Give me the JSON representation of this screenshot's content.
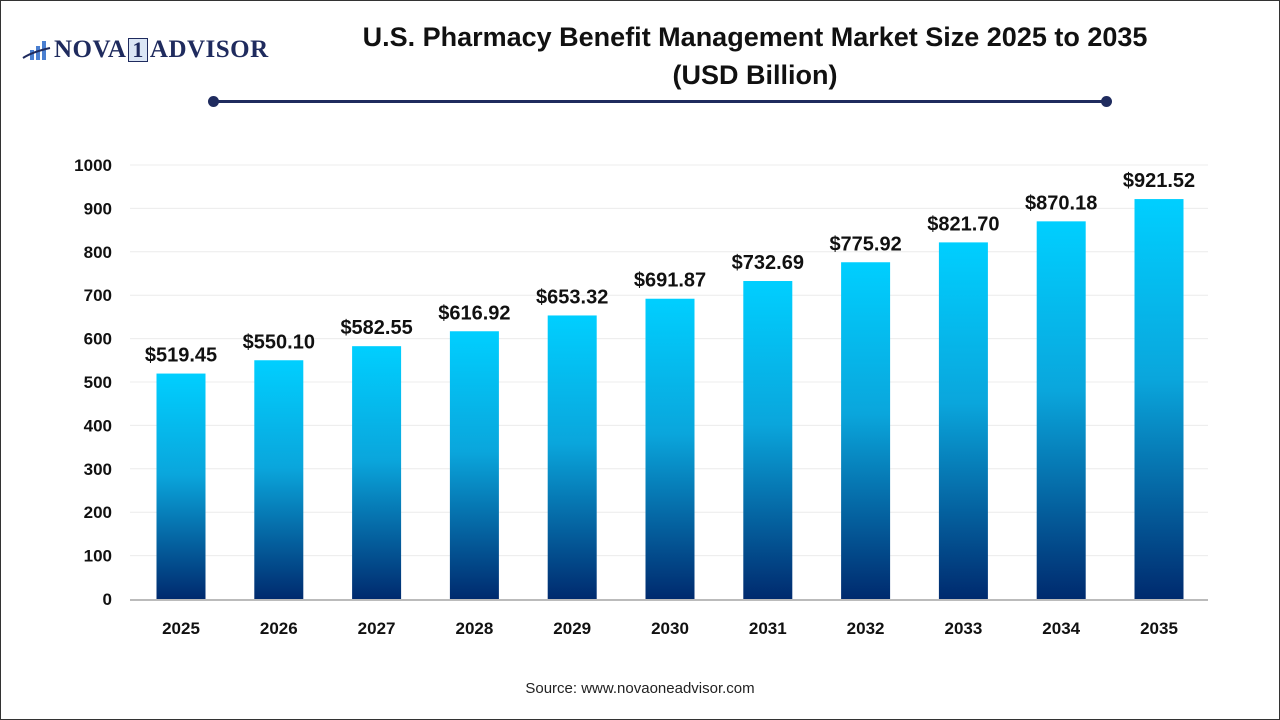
{
  "logo": {
    "text_left": "NOVA",
    "text_mid": "1",
    "text_right": "ADVISOR"
  },
  "title_line1": "U.S. Pharmacy Benefit Management Market Size 2025 to 2035",
  "title_line2": "(USD Billion)",
  "source": "Source: www.novaoneadvisor.com",
  "colors": {
    "bar_top": "#00cfff",
    "bar_bottom": "#002a6e",
    "accent": "#1f2b5e"
  },
  "chart_data": {
    "type": "bar",
    "title": "U.S. Pharmacy Benefit Management Market Size 2025 to 2035 (USD Billion)",
    "categories": [
      "2025",
      "2026",
      "2027",
      "2028",
      "2029",
      "2030",
      "2031",
      "2032",
      "2033",
      "2034",
      "2035"
    ],
    "values": [
      519.45,
      550.1,
      582.55,
      616.92,
      653.32,
      691.87,
      732.69,
      775.92,
      821.7,
      870.18,
      921.52
    ],
    "data_labels": [
      "$519.45",
      "$550.10",
      "$582.55",
      "$616.92",
      "$653.32",
      "$691.87",
      "$732.69",
      "$775.92",
      "$821.70",
      "$870.18",
      "$921.52"
    ],
    "yticks": [
      0,
      100,
      200,
      300,
      400,
      500,
      600,
      700,
      800,
      900,
      1000
    ],
    "ylim": [
      0,
      1000
    ],
    "grid": true,
    "xlabel": "",
    "ylabel": ""
  }
}
